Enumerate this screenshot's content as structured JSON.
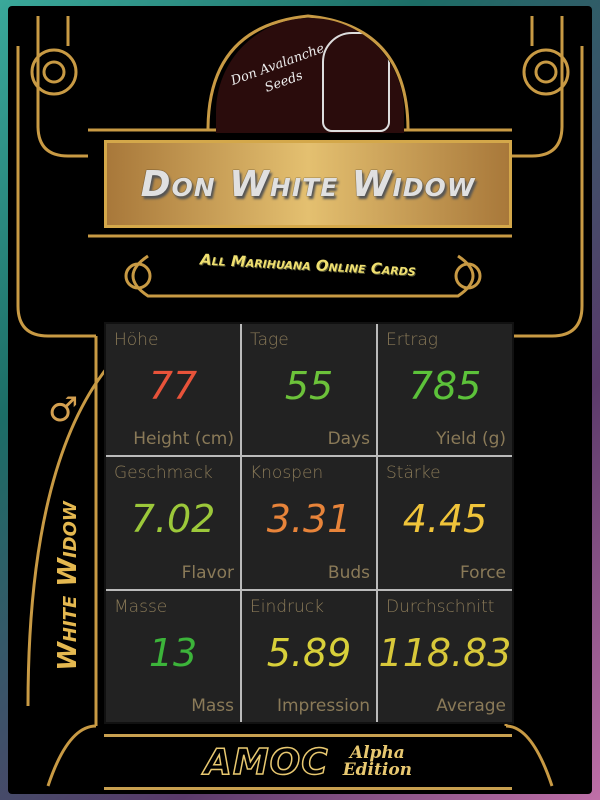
{
  "logo": {
    "brand": "Don Avalanche",
    "sub": "Seeds"
  },
  "title": "Don White Widow",
  "subtitle": "All Marihuana Online Cards",
  "side": {
    "name": "White Widow",
    "sex_symbol": "♂",
    "sex_icon": "male-symbol-icon"
  },
  "stats": [
    {
      "de": "Höhe",
      "value": "77",
      "en": "Height (cm)",
      "color": "#e8533a"
    },
    {
      "de": "Tage",
      "value": "55",
      "en": "Days",
      "color": "#6cc23a"
    },
    {
      "de": "Ertrag",
      "value": "785",
      "en": "Yield (g)",
      "color": "#5cc23a"
    },
    {
      "de": "Geschmack",
      "value": "7.02",
      "en": "Flavor",
      "color": "#9cc83a"
    },
    {
      "de": "Knospen",
      "value": "3.31",
      "en": "Buds",
      "color": "#e8843a"
    },
    {
      "de": "Stärke",
      "value": "4.45",
      "en": "Force",
      "color": "#f0c43a"
    },
    {
      "de": "Masse",
      "value": "13",
      "en": "Mass",
      "color": "#3cb43a"
    },
    {
      "de": "Eindruck",
      "value": "5.89",
      "en": "Impression",
      "color": "#d8d03a"
    },
    {
      "de": "Durchschnitt",
      "value": "118.83",
      "en": "Average",
      "color": "#d8c83a"
    }
  ],
  "footer": {
    "brand": "AMOC",
    "edition_line1": "Alpha",
    "edition_line2": "Edition"
  },
  "colors": {
    "gold": "#d4a84a",
    "cell_bg": "#222222",
    "label": "#8a7a58"
  }
}
